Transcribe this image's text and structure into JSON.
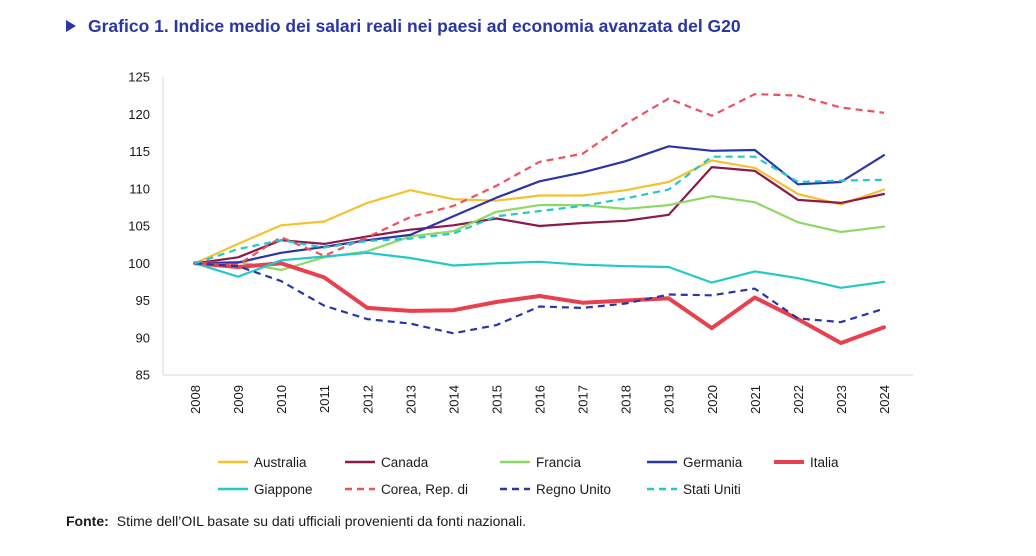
{
  "title": "Grafico 1. Indice medio dei salari reali nei paesi ad economia avanzata del G20",
  "source": {
    "label": "Fonte:",
    "text": "Stime dell’OIL basate su dati ufficiali provenienti da fonti nazionali."
  },
  "chart_data": {
    "type": "line",
    "title": "Grafico 1. Indice medio dei salari reali nei paesi ad economia avanzata del G20",
    "xlabel": "",
    "ylabel": "",
    "x": [
      2008,
      2009,
      2010,
      2011,
      2012,
      2013,
      2014,
      2015,
      2016,
      2017,
      2018,
      2019,
      2020,
      2021,
      2022,
      2023,
      2024
    ],
    "x_tick_labels": [
      "2008",
      "2009",
      "2010",
      "2011",
      "2012",
      "2013",
      "2014",
      "2015",
      "2016",
      "2017",
      "2018",
      "2019",
      "2020",
      "2021",
      "2022",
      "2023",
      "2024"
    ],
    "ylim": [
      85,
      125
    ],
    "y_ticks": [
      85,
      90,
      95,
      100,
      105,
      110,
      115,
      120,
      125
    ],
    "grid": false,
    "legend_position": "bottom",
    "series": [
      {
        "name": "Australia",
        "color": "#f5c12e",
        "style": "solid",
        "width": "normal",
        "values": [
          100,
          102.6,
          105.1,
          105.6,
          108.1,
          109.8,
          108.6,
          108.4,
          109.1,
          109.1,
          109.8,
          110.9,
          113.8,
          112.8,
          109.3,
          107.9,
          109.9
        ]
      },
      {
        "name": "Canada",
        "color": "#8b1a4a",
        "style": "solid",
        "width": "normal",
        "values": [
          100,
          100.8,
          103.1,
          102.6,
          103.6,
          104.5,
          105.1,
          106.0,
          105.0,
          105.4,
          105.7,
          106.5,
          112.9,
          112.4,
          108.5,
          108.1,
          109.3
        ]
      },
      {
        "name": "Francia",
        "color": "#8fd866",
        "style": "solid",
        "width": "normal",
        "values": [
          100,
          100.2,
          99.1,
          100.8,
          101.6,
          103.6,
          104.3,
          106.9,
          107.8,
          107.8,
          107.3,
          107.8,
          109.0,
          108.2,
          105.5,
          104.2,
          104.9
        ]
      },
      {
        "name": "Germania",
        "color": "#2a35a6",
        "style": "solid",
        "width": "normal",
        "values": [
          100,
          100.1,
          101.4,
          102.2,
          103.1,
          103.8,
          106.3,
          108.8,
          111.0,
          112.2,
          113.7,
          115.7,
          115.1,
          115.2,
          110.6,
          110.9,
          114.5
        ]
      },
      {
        "name": "Italia",
        "color": "#e8404e",
        "style": "solid",
        "width": "thick",
        "values": [
          100,
          99.5,
          100.0,
          98.1,
          94.0,
          93.6,
          93.7,
          94.8,
          95.6,
          94.7,
          95.0,
          95.3,
          91.3,
          95.4,
          92.5,
          89.3,
          91.4
        ]
      },
      {
        "name": "Giappone",
        "color": "#22c9c9",
        "style": "solid",
        "width": "normal",
        "values": [
          100,
          98.2,
          100.4,
          100.9,
          101.4,
          100.7,
          99.7,
          100.0,
          100.2,
          99.8,
          99.6,
          99.5,
          97.4,
          98.9,
          98.0,
          96.7,
          97.5
        ]
      },
      {
        "name": "Corea, Rep. di",
        "color": "#ef5060",
        "style": "dashed",
        "width": "normal",
        "values": [
          100,
          99.8,
          103.5,
          101.0,
          103.5,
          106.2,
          107.7,
          110.4,
          113.6,
          114.7,
          118.7,
          122.1,
          119.8,
          122.7,
          122.5,
          120.9,
          120.2
        ]
      },
      {
        "name": "Regno Unito",
        "color": "#2a35a6",
        "style": "dashed",
        "width": "normal",
        "values": [
          100,
          99.6,
          97.6,
          94.3,
          92.5,
          91.9,
          90.6,
          91.7,
          94.2,
          94.0,
          94.6,
          95.8,
          95.7,
          96.6,
          92.6,
          92.1,
          93.9
        ]
      },
      {
        "name": "Stati Uniti",
        "color": "#22c9c9",
        "style": "dashed",
        "width": "normal",
        "values": [
          100,
          101.9,
          103.1,
          102.1,
          103.0,
          103.3,
          104.0,
          106.3,
          107.0,
          107.7,
          108.7,
          109.9,
          114.3,
          114.3,
          110.9,
          111.1,
          111.2
        ]
      }
    ],
    "legend_rows": [
      [
        "Australia",
        "Canada",
        "Francia",
        "Germania",
        "Italia"
      ],
      [
        "Giappone",
        "Corea, Rep. di",
        "Regno Unito",
        "Stati Uniti"
      ]
    ]
  }
}
